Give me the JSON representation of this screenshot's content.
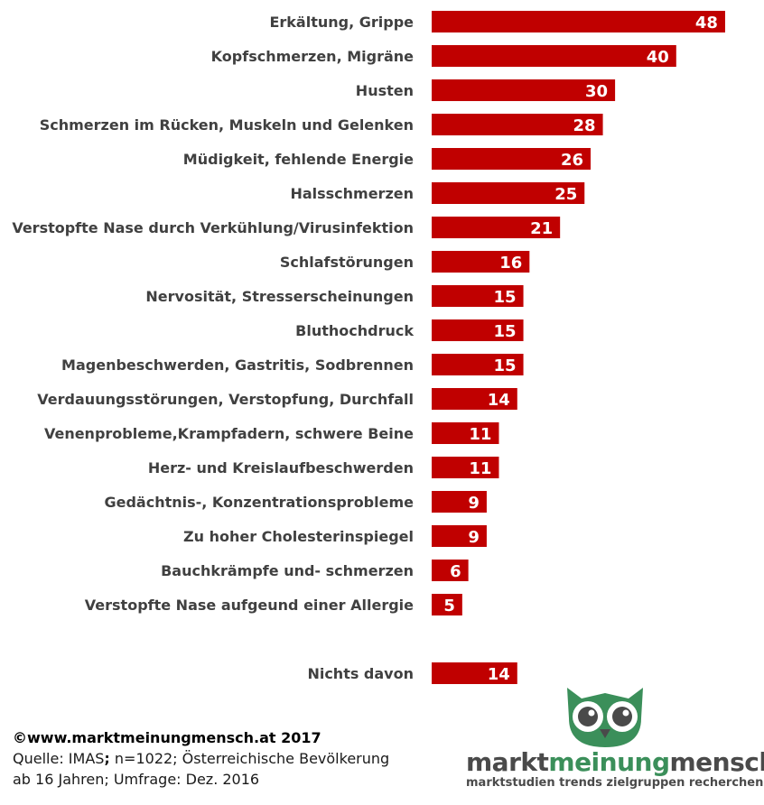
{
  "chart_data": {
    "type": "bar",
    "orientation": "horizontal",
    "categories": [
      "Erkältung, Grippe",
      "Kopfschmerzen, Migräne",
      "Husten",
      "Schmerzen im Rücken, Muskeln und Gelenken",
      "Müdigkeit, fehlende Energie",
      "Halsschmerzen",
      "Verstopfte Nase durch Verkühlung/Virusinfektion",
      "Schlafstörungen",
      "Nervosität, Stresserscheinungen",
      "Bluthochdruck",
      "Magenbeschwerden, Gastritis, Sodbrennen",
      "Verdauungsstörungen, Verstopfung, Durchfall",
      "Venenprobleme,Krampfadern, schwere Beine",
      "Herz- und Kreislaufbeschwerden",
      "Gedächtnis-, Konzentrationsprobleme",
      "Zu hoher Cholesterinspiegel",
      "Bauchkrämpfe und- schmerzen",
      "Verstopfte Nase aufgeund einer Allergie",
      "Nichts davon"
    ],
    "values": [
      48,
      40,
      30,
      28,
      26,
      25,
      21,
      16,
      15,
      15,
      15,
      14,
      11,
      11,
      9,
      9,
      6,
      5,
      14
    ],
    "bar_color": "#c00000",
    "value_label_color": "#ffffff",
    "xlim": [
      0,
      50
    ],
    "grid": false,
    "legend": "none",
    "title": "",
    "xlabel": "",
    "ylabel": ""
  },
  "footer": {
    "copyright": "©www.marktmeinungmensch.at 2017",
    "source_a": "Quelle: IMAS",
    "source_sep": ";",
    "source_b": " n=1022; Österreichische Bevölkerung",
    "source_line2": "ab 16 Jahren; Umfrage: Dez. 2016"
  },
  "logo": {
    "part1": "markt",
    "part2": "meinung",
    "part3": "mensch",
    "tagline": "marktstudien trends zielgruppen recherchen",
    "icon": "owl-icon",
    "green": "#3b8f5a"
  }
}
